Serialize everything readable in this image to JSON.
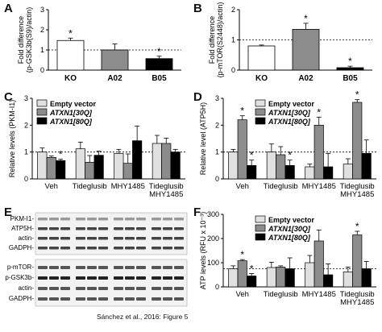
{
  "panels": {
    "A": {
      "letter": "A"
    },
    "B": {
      "letter": "B"
    },
    "C": {
      "letter": "C"
    },
    "D": {
      "letter": "D"
    },
    "E": {
      "letter": "E"
    },
    "F": {
      "letter": "F"
    }
  },
  "legend": {
    "empty": "Empty vector",
    "atxn30": "ATXN1[30Q]",
    "atxn80": "ATXN1[80Q]"
  },
  "colors": {
    "light": "#e0e0e0",
    "mid": "#8c8c8c",
    "dark": "#000000",
    "white": "#ffffff"
  },
  "blot": {
    "labels_top": [
      "PKM-I1-",
      "ATP5H-",
      "actin-",
      "GADPH-"
    ],
    "labels_bottom": [
      "p-mTOR-",
      "p-GSK3b-",
      "actin-",
      "GADPH-"
    ]
  },
  "caption": "Sánchez et al., 2016: Figure 5",
  "chart_data": [
    {
      "panel": "A",
      "type": "bar",
      "ylabel": "Fold difference\n(p-GSK3b(S9)/actin)",
      "categories": [
        "KO",
        "A02",
        "B05"
      ],
      "values": [
        1.47,
        1.0,
        0.57
      ],
      "errors": [
        0.12,
        0.3,
        0.12
      ],
      "bar_colors": [
        "#ffffff",
        "#8c8c8c",
        "#000000"
      ],
      "significance": [
        "*",
        "",
        "*"
      ],
      "ylim": [
        0,
        3
      ],
      "yticks": [
        0,
        1,
        2,
        3
      ],
      "reference_line": 1
    },
    {
      "panel": "B",
      "type": "bar",
      "ylabel": "Fold difference\n(p-mTOR(S2448)/actin)",
      "categories": [
        "KO",
        "A02",
        "B05"
      ],
      "values": [
        0.8,
        1.35,
        0.08
      ],
      "errors": [
        0.03,
        0.2,
        0.05
      ],
      "bar_colors": [
        "#ffffff",
        "#8c8c8c",
        "#000000"
      ],
      "significance": [
        "",
        "*",
        "*"
      ],
      "ylim": [
        0,
        2
      ],
      "yticks": [
        0,
        1,
        2
      ],
      "reference_line": 1
    },
    {
      "panel": "C",
      "type": "bar",
      "ylabel": "Relative levels (PKM-I1)",
      "categories": [
        "Veh",
        "Tideglusib",
        "MHY1485",
        "Tideglusib\nMHY1485"
      ],
      "series": [
        {
          "name": "Empty vector",
          "values": [
            1.0,
            1.12,
            0.95,
            1.32
          ],
          "errors": [
            0.15,
            0.25,
            0.15,
            0.3
          ]
        },
        {
          "name": "ATXN1[30Q]",
          "values": [
            0.8,
            0.62,
            0.58,
            1.32
          ],
          "errors": [
            0.05,
            0.25,
            0.35,
            0.2
          ]
        },
        {
          "name": "ATXN1[80Q]",
          "values": [
            0.68,
            0.88,
            1.42,
            1.0
          ],
          "errors": [
            0.05,
            0.15,
            0.55,
            0.1
          ]
        }
      ],
      "significance": [
        [
          "",
          "",
          "*"
        ],
        [
          "",
          "",
          ""
        ],
        [
          "",
          "",
          ""
        ],
        [
          "",
          "",
          ""
        ]
      ],
      "ylim": [
        0,
        3
      ],
      "yticks": [
        0,
        1,
        2,
        3
      ],
      "reference_line": 1,
      "legend": "top-left"
    },
    {
      "panel": "D",
      "type": "bar",
      "ylabel": "Relative level (ATP5H)",
      "categories": [
        "Veh",
        "Tideglusib",
        "MHY1485",
        "Tideglusib\nMHY1485"
      ],
      "series": [
        {
          "name": "Empty vector",
          "values": [
            1.0,
            1.0,
            0.45,
            0.55
          ],
          "errors": [
            0.1,
            0.3,
            0.1,
            0.2
          ]
        },
        {
          "name": "ATXN1[30Q]",
          "values": [
            2.2,
            0.9,
            2.0,
            2.85
          ],
          "errors": [
            0.15,
            0.3,
            0.3,
            0.1
          ]
        },
        {
          "name": "ATXN1[80Q]",
          "values": [
            0.5,
            0.5,
            0.45,
            0.95
          ],
          "errors": [
            0.2,
            0.2,
            0.5,
            0.5
          ]
        }
      ],
      "significance": [
        [
          "",
          "*",
          "*"
        ],
        [
          "",
          "",
          "*"
        ],
        [
          "",
          "*",
          ""
        ],
        [
          "",
          "*",
          ""
        ]
      ],
      "ylim": [
        0,
        3
      ],
      "yticks": [
        0,
        1,
        2,
        3
      ],
      "reference_line": 1,
      "legend": "top-right"
    },
    {
      "panel": "F",
      "type": "bar",
      "ylabel": "ATP levels (RFU x 10⁻³)",
      "categories": [
        "Veh",
        "Tideglusib",
        "MHY1485",
        "Tideglusib\nMHY1485"
      ],
      "series": [
        {
          "name": "Empty vector",
          "values": [
            75,
            80,
            100,
            62
          ],
          "errors": [
            12,
            22,
            30,
            20
          ]
        },
        {
          "name": "ATXN1[30Q]",
          "values": [
            108,
            82,
            190,
            215
          ],
          "errors": [
            5,
            5,
            45,
            15
          ]
        },
        {
          "name": "ATXN1[80Q]",
          "values": [
            45,
            75,
            50,
            75
          ],
          "errors": [
            10,
            45,
            45,
            30
          ]
        }
      ],
      "significance": [
        [
          "",
          "*",
          "*"
        ],
        [
          "",
          "",
          ""
        ],
        [
          "",
          "",
          ""
        ],
        [
          "",
          "*",
          ""
        ]
      ],
      "ylim": [
        0,
        300
      ],
      "yticks": [
        0,
        100,
        200,
        300
      ],
      "reference_line": 75,
      "legend": "top-right"
    }
  ]
}
